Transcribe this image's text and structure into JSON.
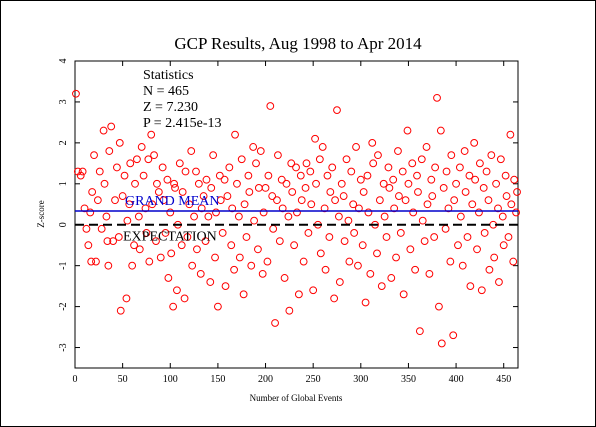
{
  "chart_data": {
    "type": "scatter",
    "title": "GCP Results, Aug 1998 to Apr 2014",
    "xlabel": "Number of Global Events",
    "ylabel": "Z-score",
    "xlim": [
      0,
      465
    ],
    "ylim": [
      -3.5,
      4
    ],
    "x_ticks": [
      0,
      50,
      100,
      150,
      200,
      250,
      300,
      350,
      400,
      450
    ],
    "y_ticks": [
      -3,
      -2,
      -1,
      0,
      1,
      2,
      3,
      4
    ],
    "grid": false,
    "statistics": {
      "heading": "Statistics",
      "n_line": "N = 465",
      "z_line": "Z = 7.230",
      "p_line": "P = 2.415e-13"
    },
    "grand_mean": {
      "label": "GRAND MEAN",
      "value": 0.335,
      "color": "#0000cc"
    },
    "expectation": {
      "label": "EXPECTATION",
      "value": 0,
      "color": "#000000"
    },
    "marker_color": "#ff0000",
    "points": [
      [
        1,
        3.2
      ],
      [
        3,
        1.3
      ],
      [
        6,
        1.2
      ],
      [
        8,
        1.3
      ],
      [
        10,
        0.4
      ],
      [
        12,
        -0.1
      ],
      [
        14,
        -0.5
      ],
      [
        16,
        0.3
      ],
      [
        17,
        -0.9
      ],
      [
        18,
        0.8
      ],
      [
        20,
        1.7
      ],
      [
        22,
        -0.9
      ],
      [
        24,
        0.6
      ],
      [
        26,
        1.3
      ],
      [
        28,
        -0.1
      ],
      [
        30,
        2.3
      ],
      [
        31,
        1.0
      ],
      [
        33,
        0.2
      ],
      [
        34,
        -0.4
      ],
      [
        35,
        -1.0
      ],
      [
        36,
        1.8
      ],
      [
        38,
        2.4
      ],
      [
        40,
        -0.4
      ],
      [
        42,
        0.6
      ],
      [
        44,
        1.4
      ],
      [
        46,
        -0.3
      ],
      [
        47,
        2.0
      ],
      [
        48,
        -2.1
      ],
      [
        50,
        0.7
      ],
      [
        52,
        1.2
      ],
      [
        54,
        -1.8
      ],
      [
        55,
        0.1
      ],
      [
        57,
        0.5
      ],
      [
        58,
        1.5
      ],
      [
        60,
        -1.0
      ],
      [
        62,
        -0.5
      ],
      [
        63,
        1.0
      ],
      [
        65,
        1.6
      ],
      [
        67,
        0.2
      ],
      [
        68,
        -0.6
      ],
      [
        70,
        1.9
      ],
      [
        72,
        1.2
      ],
      [
        74,
        0.4
      ],
      [
        75,
        -0.2
      ],
      [
        77,
        1.6
      ],
      [
        78,
        -0.9
      ],
      [
        80,
        2.2
      ],
      [
        81,
        0.5
      ],
      [
        83,
        1.7
      ],
      [
        85,
        -0.4
      ],
      [
        86,
        1.0
      ],
      [
        88,
        0.8
      ],
      [
        90,
        -0.8
      ],
      [
        92,
        1.4
      ],
      [
        93,
        0.6
      ],
      [
        95,
        -0.2
      ],
      [
        97,
        1.1
      ],
      [
        98,
        -1.3
      ],
      [
        100,
        0.3
      ],
      [
        101,
        -0.7
      ],
      [
        103,
        -2.0
      ],
      [
        104,
        1.0
      ],
      [
        105,
        0.9
      ],
      [
        107,
        -1.6
      ],
      [
        108,
        0.0
      ],
      [
        110,
        1.5
      ],
      [
        112,
        -0.5
      ],
      [
        113,
        0.8
      ],
      [
        115,
        -1.8
      ],
      [
        116,
        1.3
      ],
      [
        118,
        -0.3
      ],
      [
        120,
        0.5
      ],
      [
        122,
        1.8
      ],
      [
        123,
        -1.0
      ],
      [
        125,
        0.2
      ],
      [
        127,
        1.3
      ],
      [
        128,
        -0.6
      ],
      [
        130,
        1.0
      ],
      [
        132,
        -1.2
      ],
      [
        133,
        0.4
      ],
      [
        135,
        0.7
      ],
      [
        137,
        -0.4
      ],
      [
        138,
        1.1
      ],
      [
        140,
        0.2
      ],
      [
        142,
        -1.4
      ],
      [
        143,
        0.9
      ],
      [
        145,
        1.7
      ],
      [
        147,
        -0.8
      ],
      [
        148,
        0.3
      ],
      [
        150,
        -2.0
      ],
      [
        152,
        1.2
      ],
      [
        153,
        0.6
      ],
      [
        155,
        -0.2
      ],
      [
        157,
        1.1
      ],
      [
        158,
        -1.5
      ],
      [
        160,
        0.7
      ],
      [
        162,
        1.4
      ],
      [
        164,
        -0.5
      ],
      [
        165,
        0.4
      ],
      [
        167,
        -1.1
      ],
      [
        168,
        2.2
      ],
      [
        170,
        1.0
      ],
      [
        172,
        0.2
      ],
      [
        173,
        -0.8
      ],
      [
        175,
        1.6
      ],
      [
        177,
        -1.7
      ],
      [
        178,
        0.5
      ],
      [
        180,
        -0.3
      ],
      [
        182,
        1.2
      ],
      [
        183,
        0.8
      ],
      [
        185,
        -1.0
      ],
      [
        187,
        1.9
      ],
      [
        188,
        0.1
      ],
      [
        190,
        1.5
      ],
      [
        192,
        -0.6
      ],
      [
        193,
        0.9
      ],
      [
        195,
        1.8
      ],
      [
        197,
        -1.2
      ],
      [
        198,
        0.3
      ],
      [
        200,
        0.9
      ],
      [
        202,
        -0.9
      ],
      [
        203,
        1.2
      ],
      [
        205,
        2.9
      ],
      [
        207,
        0.7
      ],
      [
        208,
        -0.1
      ],
      [
        210,
        -2.4
      ],
      [
        212,
        0.6
      ],
      [
        213,
        1.7
      ],
      [
        215,
        -0.4
      ],
      [
        217,
        1.1
      ],
      [
        218,
        0.4
      ],
      [
        220,
        -1.3
      ],
      [
        222,
        1.0
      ],
      [
        224,
        0.2
      ],
      [
        225,
        -2.1
      ],
      [
        227,
        1.5
      ],
      [
        228,
        0.8
      ],
      [
        230,
        -0.5
      ],
      [
        232,
        1.4
      ],
      [
        233,
        0.3
      ],
      [
        235,
        -1.7
      ],
      [
        237,
        1.2
      ],
      [
        238,
        0.6
      ],
      [
        240,
        -0.9
      ],
      [
        242,
        0.9
      ],
      [
        243,
        1.5
      ],
      [
        245,
        -0.2
      ],
      [
        247,
        1.3
      ],
      [
        248,
        0.5
      ],
      [
        250,
        -1.6
      ],
      [
        252,
        2.1
      ],
      [
        253,
        1.0
      ],
      [
        255,
        0.0
      ],
      [
        257,
        1.6
      ],
      [
        258,
        -0.7
      ],
      [
        260,
        1.9
      ],
      [
        262,
        0.4
      ],
      [
        263,
        -1.1
      ],
      [
        265,
        1.2
      ],
      [
        267,
        -0.3
      ],
      [
        268,
        0.8
      ],
      [
        270,
        1.4
      ],
      [
        272,
        -1.8
      ],
      [
        273,
        0.6
      ],
      [
        275,
        2.8
      ],
      [
        277,
        0.2
      ],
      [
        278,
        -1.4
      ],
      [
        280,
        1.0
      ],
      [
        282,
        0.7
      ],
      [
        283,
        -0.4
      ],
      [
        285,
        1.6
      ],
      [
        287,
        0.1
      ],
      [
        288,
        -0.9
      ],
      [
        290,
        1.3
      ],
      [
        292,
        0.5
      ],
      [
        293,
        -0.2
      ],
      [
        295,
        1.9
      ],
      [
        297,
        -1.0
      ],
      [
        298,
        0.4
      ],
      [
        300,
        1.1
      ],
      [
        302,
        -0.5
      ],
      [
        303,
        0.8
      ],
      [
        305,
        -1.9
      ],
      [
        307,
        1.2
      ],
      [
        308,
        0.3
      ],
      [
        310,
        -1.2
      ],
      [
        312,
        2.0
      ],
      [
        313,
        1.5
      ],
      [
        315,
        0.0
      ],
      [
        317,
        -0.7
      ],
      [
        318,
        1.7
      ],
      [
        320,
        0.6
      ],
      [
        322,
        -1.5
      ],
      [
        324,
        1.0
      ],
      [
        325,
        0.2
      ],
      [
        327,
        -0.3
      ],
      [
        329,
        1.4
      ],
      [
        330,
        0.9
      ],
      [
        332,
        -1.3
      ],
      [
        334,
        1.1
      ],
      [
        335,
        0.4
      ],
      [
        337,
        -0.8
      ],
      [
        339,
        1.8
      ],
      [
        340,
        0.7
      ],
      [
        342,
        -0.2
      ],
      [
        344,
        1.3
      ],
      [
        345,
        -1.7
      ],
      [
        347,
        0.6
      ],
      [
        349,
        2.3
      ],
      [
        350,
        1.0
      ],
      [
        352,
        -0.6
      ],
      [
        354,
        1.5
      ],
      [
        355,
        0.3
      ],
      [
        357,
        -1.1
      ],
      [
        359,
        1.2
      ],
      [
        360,
        0.8
      ],
      [
        362,
        -2.6
      ],
      [
        364,
        1.6
      ],
      [
        365,
        0.1
      ],
      [
        367,
        -0.4
      ],
      [
        369,
        1.9
      ],
      [
        370,
        0.5
      ],
      [
        372,
        -1.2
      ],
      [
        374,
        1.1
      ],
      [
        375,
        0.7
      ],
      [
        377,
        -0.3
      ],
      [
        378,
        1.4
      ],
      [
        380,
        3.1
      ],
      [
        382,
        -2.0
      ],
      [
        384,
        2.3
      ],
      [
        385,
        -2.9
      ],
      [
        387,
        0.9
      ],
      [
        389,
        -0.1
      ],
      [
        390,
        1.3
      ],
      [
        392,
        0.4
      ],
      [
        394,
        -0.9
      ],
      [
        395,
        1.7
      ],
      [
        397,
        -2.7
      ],
      [
        398,
        0.6
      ],
      [
        400,
        1.0
      ],
      [
        402,
        -0.5
      ],
      [
        404,
        1.4
      ],
      [
        405,
        0.2
      ],
      [
        407,
        -1.0
      ],
      [
        409,
        1.8
      ],
      [
        410,
        0.8
      ],
      [
        412,
        -0.3
      ],
      [
        414,
        1.2
      ],
      [
        415,
        -1.5
      ],
      [
        417,
        0.5
      ],
      [
        419,
        2.0
      ],
      [
        420,
        1.1
      ],
      [
        422,
        -0.6
      ],
      [
        424,
        0.3
      ],
      [
        425,
        1.5
      ],
      [
        427,
        -1.6
      ],
      [
        429,
        0.9
      ],
      [
        430,
        -0.2
      ],
      [
        432,
        1.3
      ],
      [
        434,
        0.6
      ],
      [
        435,
        -1.1
      ],
      [
        437,
        1.7
      ],
      [
        439,
        0.0
      ],
      [
        440,
        -0.8
      ],
      [
        442,
        1.0
      ],
      [
        444,
        0.4
      ],
      [
        445,
        -1.4
      ],
      [
        447,
        1.6
      ],
      [
        449,
        0.2
      ],
      [
        450,
        -0.5
      ],
      [
        452,
        1.2
      ],
      [
        453,
        0.7
      ],
      [
        455,
        -0.3
      ],
      [
        457,
        2.2
      ],
      [
        458,
        0.5
      ],
      [
        460,
        -0.9
      ],
      [
        461,
        1.1
      ],
      [
        463,
        0.3
      ],
      [
        464,
        0.8
      ]
    ]
  }
}
